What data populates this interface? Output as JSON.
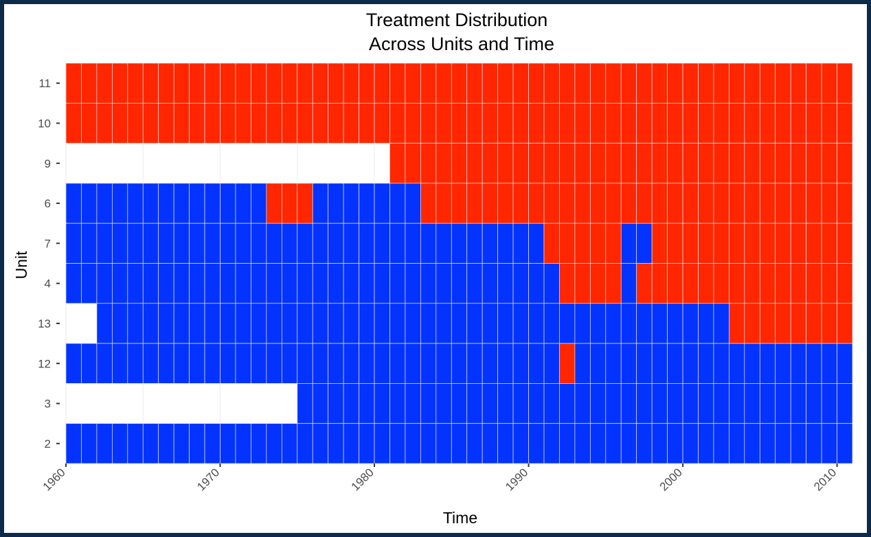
{
  "chart_data": {
    "type": "heatmap",
    "title_lines": [
      "Treatment Distribution",
      "Across Units and Time"
    ],
    "xlabel": "Time",
    "ylabel": "Unit",
    "x_range": [
      1960,
      2010
    ],
    "x_ticks": [
      "1960",
      "1970",
      "1980",
      "1990",
      "2000",
      "2010"
    ],
    "units": [
      "11",
      "10",
      "9",
      "6",
      "7",
      "4",
      "13",
      "12",
      "3",
      "2"
    ],
    "colors": {
      "treated": "#ff2600",
      "control": "#0433ff",
      "missing": "#ffffff"
    },
    "grid": true,
    "legend": "none",
    "rows": [
      {
        "unit": "11",
        "segments": [
          {
            "start": 1960,
            "end": 2010,
            "state": "treated"
          }
        ]
      },
      {
        "unit": "10",
        "segments": [
          {
            "start": 1960,
            "end": 2010,
            "state": "treated"
          }
        ]
      },
      {
        "unit": "9",
        "segments": [
          {
            "start": 1960,
            "end": 1980,
            "state": "missing"
          },
          {
            "start": 1981,
            "end": 2010,
            "state": "treated"
          }
        ]
      },
      {
        "unit": "6",
        "segments": [
          {
            "start": 1960,
            "end": 1972,
            "state": "control"
          },
          {
            "start": 1973,
            "end": 1975,
            "state": "treated"
          },
          {
            "start": 1976,
            "end": 1982,
            "state": "control"
          },
          {
            "start": 1983,
            "end": 2010,
            "state": "treated"
          }
        ]
      },
      {
        "unit": "7",
        "segments": [
          {
            "start": 1960,
            "end": 1990,
            "state": "control"
          },
          {
            "start": 1991,
            "end": 1995,
            "state": "treated"
          },
          {
            "start": 1996,
            "end": 1997,
            "state": "control"
          },
          {
            "start": 1998,
            "end": 2010,
            "state": "treated"
          }
        ]
      },
      {
        "unit": "4",
        "segments": [
          {
            "start": 1960,
            "end": 1991,
            "state": "control"
          },
          {
            "start": 1992,
            "end": 1995,
            "state": "treated"
          },
          {
            "start": 1996,
            "end": 1996,
            "state": "control"
          },
          {
            "start": 1997,
            "end": 2010,
            "state": "treated"
          }
        ]
      },
      {
        "unit": "13",
        "segments": [
          {
            "start": 1960,
            "end": 1961,
            "state": "missing"
          },
          {
            "start": 1962,
            "end": 2002,
            "state": "control"
          },
          {
            "start": 2003,
            "end": 2010,
            "state": "treated"
          }
        ]
      },
      {
        "unit": "12",
        "segments": [
          {
            "start": 1960,
            "end": 1991,
            "state": "control"
          },
          {
            "start": 1992,
            "end": 1992,
            "state": "treated"
          },
          {
            "start": 1993,
            "end": 2010,
            "state": "control"
          }
        ]
      },
      {
        "unit": "3",
        "segments": [
          {
            "start": 1960,
            "end": 1974,
            "state": "missing"
          },
          {
            "start": 1975,
            "end": 2010,
            "state": "control"
          }
        ]
      },
      {
        "unit": "2",
        "segments": [
          {
            "start": 1960,
            "end": 2010,
            "state": "control"
          }
        ]
      }
    ]
  }
}
